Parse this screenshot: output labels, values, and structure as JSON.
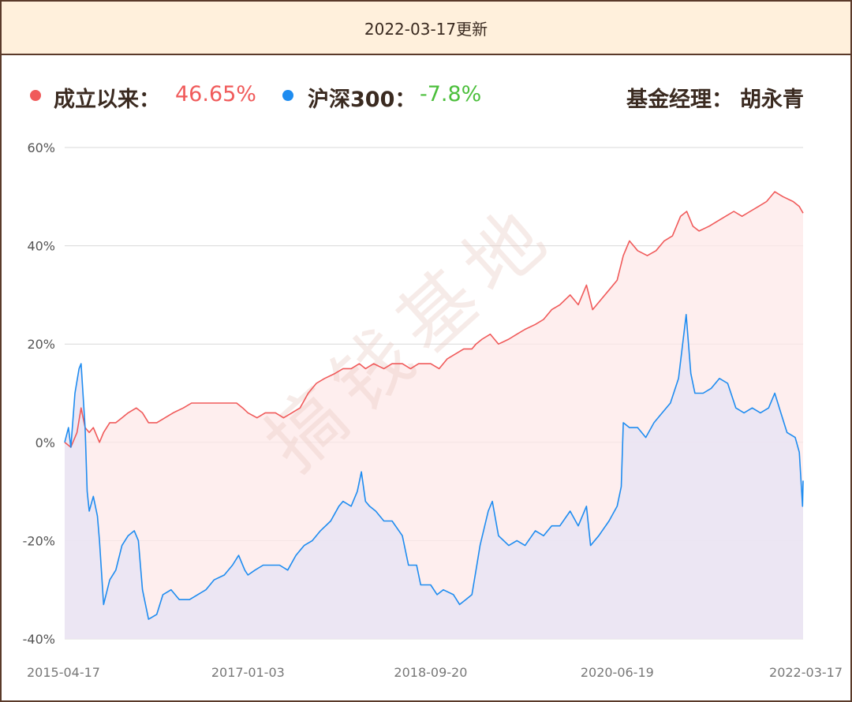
{
  "header": {
    "update_text": "2022-03-17更新"
  },
  "legend": {
    "fund": {
      "label": "成立以来：",
      "value": "46.65%",
      "color": "#f05a5a"
    },
    "index": {
      "label": "沪深300：",
      "value": "-7.8%",
      "color": "#1e8cf0"
    },
    "manager_label": "基金经理：",
    "manager_name": "胡永青"
  },
  "watermark": "搞钱基地",
  "colors": {
    "value_positive": "#f05a5a",
    "value_negative": "#4cbf3c",
    "text_dark": "#3a2a20"
  },
  "chart_data": {
    "type": "line",
    "title": "",
    "xlabel": "",
    "ylabel": "",
    "x_ticks": [
      "2015-04-17",
      "2017-01-03",
      "2018-09-20",
      "2020-06-19",
      "2022-03-17"
    ],
    "y_ticks": [
      "60%",
      "40%",
      "20%",
      "0%",
      "-20%",
      "-40%"
    ],
    "ylim": [
      -40,
      60
    ],
    "grid": true,
    "series": [
      {
        "name": "成立以来",
        "color": "#f05a5a",
        "fill": true,
        "points": [
          [
            "2015-04-17",
            0
          ],
          [
            "2015-05-08",
            -1
          ],
          [
            "2015-05-29",
            2
          ],
          [
            "2015-06-12",
            7
          ],
          [
            "2015-06-26",
            3
          ],
          [
            "2015-07-10",
            2
          ],
          [
            "2015-07-24",
            3
          ],
          [
            "2015-08-14",
            0
          ],
          [
            "2015-08-28",
            2
          ],
          [
            "2015-09-18",
            4
          ],
          [
            "2015-10-09",
            4
          ],
          [
            "2015-10-30",
            5
          ],
          [
            "2015-11-20",
            6
          ],
          [
            "2015-12-18",
            7
          ],
          [
            "2016-01-08",
            6
          ],
          [
            "2016-01-29",
            4
          ],
          [
            "2016-02-26",
            4
          ],
          [
            "2016-03-25",
            5
          ],
          [
            "2016-04-22",
            6
          ],
          [
            "2016-05-27",
            7
          ],
          [
            "2016-06-24",
            8
          ],
          [
            "2016-07-29",
            8
          ],
          [
            "2016-08-26",
            8
          ],
          [
            "2016-09-30",
            8
          ],
          [
            "2016-10-28",
            8
          ],
          [
            "2016-11-25",
            8
          ],
          [
            "2016-12-16",
            7
          ],
          [
            "2017-01-03",
            6
          ],
          [
            "2017-02-03",
            5
          ],
          [
            "2017-03-03",
            6
          ],
          [
            "2017-04-07",
            6
          ],
          [
            "2017-05-05",
            5
          ],
          [
            "2017-06-02",
            6
          ],
          [
            "2017-06-30",
            7
          ],
          [
            "2017-07-28",
            10
          ],
          [
            "2017-08-25",
            12
          ],
          [
            "2017-09-22",
            13
          ],
          [
            "2017-10-27",
            14
          ],
          [
            "2017-11-24",
            15
          ],
          [
            "2017-12-22",
            15
          ],
          [
            "2018-01-19",
            16
          ],
          [
            "2018-02-09",
            15
          ],
          [
            "2018-03-09",
            16
          ],
          [
            "2018-04-13",
            15
          ],
          [
            "2018-05-11",
            16
          ],
          [
            "2018-06-15",
            16
          ],
          [
            "2018-07-13",
            15
          ],
          [
            "2018-08-10",
            16
          ],
          [
            "2018-09-20",
            16
          ],
          [
            "2018-10-19",
            15
          ],
          [
            "2018-11-16",
            17
          ],
          [
            "2018-12-14",
            18
          ],
          [
            "2019-01-11",
            19
          ],
          [
            "2019-02-08",
            19
          ],
          [
            "2019-02-22",
            20
          ],
          [
            "2019-03-15",
            21
          ],
          [
            "2019-04-12",
            22
          ],
          [
            "2019-05-10",
            20
          ],
          [
            "2019-06-14",
            21
          ],
          [
            "2019-07-12",
            22
          ],
          [
            "2019-08-09",
            23
          ],
          [
            "2019-09-13",
            24
          ],
          [
            "2019-10-11",
            25
          ],
          [
            "2019-11-08",
            27
          ],
          [
            "2019-12-06",
            28
          ],
          [
            "2020-01-10",
            30
          ],
          [
            "2020-02-07",
            28
          ],
          [
            "2020-03-06",
            32
          ],
          [
            "2020-03-27",
            27
          ],
          [
            "2020-04-24",
            29
          ],
          [
            "2020-05-22",
            31
          ],
          [
            "2020-06-19",
            33
          ],
          [
            "2020-07-10",
            38
          ],
          [
            "2020-07-31",
            41
          ],
          [
            "2020-08-28",
            39
          ],
          [
            "2020-09-30",
            38
          ],
          [
            "2020-10-30",
            39
          ],
          [
            "2020-11-27",
            41
          ],
          [
            "2020-12-25",
            42
          ],
          [
            "2021-01-22",
            46
          ],
          [
            "2021-02-12",
            47
          ],
          [
            "2021-03-05",
            44
          ],
          [
            "2021-03-26",
            43
          ],
          [
            "2021-04-30",
            44
          ],
          [
            "2021-05-28",
            45
          ],
          [
            "2021-06-25",
            46
          ],
          [
            "2021-07-23",
            47
          ],
          [
            "2021-08-20",
            46
          ],
          [
            "2021-09-17",
            47
          ],
          [
            "2021-10-15",
            48
          ],
          [
            "2021-11-12",
            49
          ],
          [
            "2021-12-10",
            51
          ],
          [
            "2022-01-07",
            50
          ],
          [
            "2022-02-11",
            49
          ],
          [
            "2022-03-04",
            48
          ],
          [
            "2022-03-17",
            46.65
          ]
        ]
      },
      {
        "name": "沪深300",
        "color": "#1e8cf0",
        "fill": true,
        "points": [
          [
            "2015-04-17",
            0
          ],
          [
            "2015-04-30",
            3
          ],
          [
            "2015-05-08",
            -1
          ],
          [
            "2015-05-22",
            10
          ],
          [
            "2015-06-05",
            15
          ],
          [
            "2015-06-12",
            16
          ],
          [
            "2015-06-26",
            3
          ],
          [
            "2015-07-03",
            -10
          ],
          [
            "2015-07-10",
            -14
          ],
          [
            "2015-07-24",
            -11
          ],
          [
            "2015-08-07",
            -15
          ],
          [
            "2015-08-14",
            -20
          ],
          [
            "2015-08-28",
            -33
          ],
          [
            "2015-09-18",
            -28
          ],
          [
            "2015-10-09",
            -26
          ],
          [
            "2015-10-30",
            -21
          ],
          [
            "2015-11-20",
            -19
          ],
          [
            "2015-12-11",
            -18
          ],
          [
            "2015-12-25",
            -20
          ],
          [
            "2016-01-08",
            -30
          ],
          [
            "2016-01-29",
            -36
          ],
          [
            "2016-02-26",
            -35
          ],
          [
            "2016-03-18",
            -31
          ],
          [
            "2016-04-15",
            -30
          ],
          [
            "2016-05-13",
            -32
          ],
          [
            "2016-06-17",
            -32
          ],
          [
            "2016-07-15",
            -31
          ],
          [
            "2016-08-12",
            -30
          ],
          [
            "2016-09-09",
            -28
          ],
          [
            "2016-10-14",
            -27
          ],
          [
            "2016-11-11",
            -25
          ],
          [
            "2016-12-02",
            -23
          ],
          [
            "2016-12-23",
            -26
          ],
          [
            "2017-01-03",
            -27
          ],
          [
            "2017-01-27",
            -26
          ],
          [
            "2017-02-24",
            -25
          ],
          [
            "2017-03-24",
            -25
          ],
          [
            "2017-04-21",
            -25
          ],
          [
            "2017-05-19",
            -26
          ],
          [
            "2017-06-16",
            -23
          ],
          [
            "2017-07-14",
            -21
          ],
          [
            "2017-08-11",
            -20
          ],
          [
            "2017-09-08",
            -18
          ],
          [
            "2017-10-13",
            -16
          ],
          [
            "2017-11-10",
            -13
          ],
          [
            "2017-11-24",
            -12
          ],
          [
            "2017-12-22",
            -13
          ],
          [
            "2018-01-12",
            -10
          ],
          [
            "2018-01-26",
            -6
          ],
          [
            "2018-02-09",
            -12
          ],
          [
            "2018-02-23",
            -13
          ],
          [
            "2018-03-16",
            -14
          ],
          [
            "2018-04-13",
            -16
          ],
          [
            "2018-05-11",
            -16
          ],
          [
            "2018-06-15",
            -19
          ],
          [
            "2018-07-06",
            -25
          ],
          [
            "2018-08-03",
            -25
          ],
          [
            "2018-08-17",
            -29
          ],
          [
            "2018-09-20",
            -29
          ],
          [
            "2018-10-12",
            -31
          ],
          [
            "2018-11-02",
            -30
          ],
          [
            "2018-12-07",
            -31
          ],
          [
            "2018-12-28",
            -33
          ],
          [
            "2019-01-18",
            -32
          ],
          [
            "2019-02-08",
            -31
          ],
          [
            "2019-02-22",
            -26
          ],
          [
            "2019-03-08",
            -21
          ],
          [
            "2019-04-05",
            -14
          ],
          [
            "2019-04-19",
            -12
          ],
          [
            "2019-05-10",
            -19
          ],
          [
            "2019-06-14",
            -21
          ],
          [
            "2019-07-12",
            -20
          ],
          [
            "2019-08-09",
            -21
          ],
          [
            "2019-09-13",
            -18
          ],
          [
            "2019-10-11",
            -19
          ],
          [
            "2019-11-08",
            -17
          ],
          [
            "2019-12-06",
            -17
          ],
          [
            "2020-01-10",
            -14
          ],
          [
            "2020-02-07",
            -17
          ],
          [
            "2020-03-06",
            -13
          ],
          [
            "2020-03-20",
            -21
          ],
          [
            "2020-04-17",
            -19
          ],
          [
            "2020-05-22",
            -16
          ],
          [
            "2020-06-19",
            -13
          ],
          [
            "2020-07-03",
            -9
          ],
          [
            "2020-07-10",
            4
          ],
          [
            "2020-07-31",
            3
          ],
          [
            "2020-08-28",
            3
          ],
          [
            "2020-09-25",
            1
          ],
          [
            "2020-10-23",
            4
          ],
          [
            "2020-11-20",
            6
          ],
          [
            "2020-12-18",
            8
          ],
          [
            "2021-01-15",
            13
          ],
          [
            "2021-02-10",
            26
          ],
          [
            "2021-02-26",
            14
          ],
          [
            "2021-03-12",
            10
          ],
          [
            "2021-04-09",
            10
          ],
          [
            "2021-05-07",
            11
          ],
          [
            "2021-06-04",
            13
          ],
          [
            "2021-07-02",
            12
          ],
          [
            "2021-07-30",
            7
          ],
          [
            "2021-08-27",
            6
          ],
          [
            "2021-09-24",
            7
          ],
          [
            "2021-10-22",
            6
          ],
          [
            "2021-11-19",
            7
          ],
          [
            "2021-12-10",
            10
          ],
          [
            "2021-12-31",
            6
          ],
          [
            "2022-01-21",
            2
          ],
          [
            "2022-02-18",
            1
          ],
          [
            "2022-03-04",
            -2
          ],
          [
            "2022-03-15",
            -13
          ],
          [
            "2022-03-17",
            -7.8
          ]
        ]
      }
    ]
  }
}
